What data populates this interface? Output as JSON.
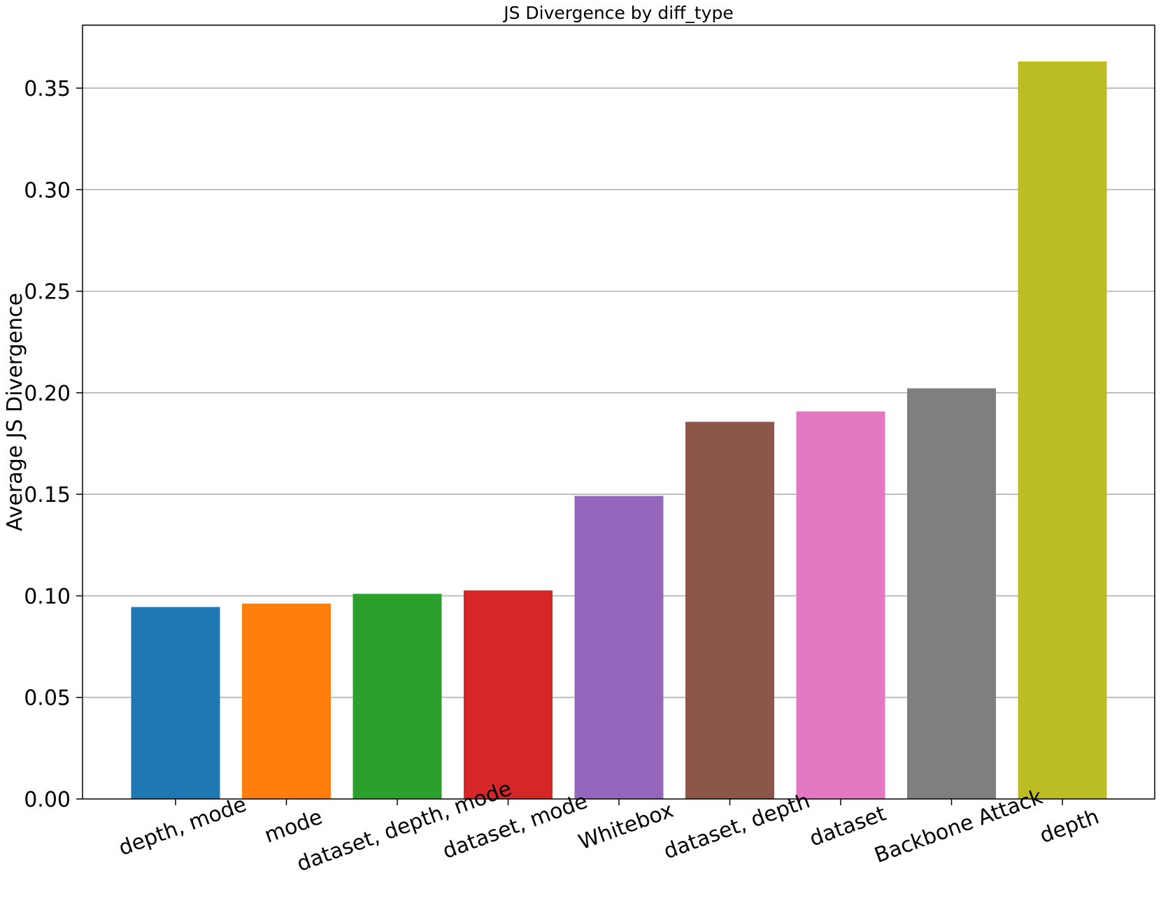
{
  "chart_data": {
    "type": "bar",
    "title": "JS Divergence by diff_type",
    "xlabel": "",
    "ylabel": "Average JS Divergence",
    "categories": [
      "depth, mode",
      "mode",
      "dataset, depth, mode",
      "dataset, mode",
      "Whitebox",
      "dataset, depth",
      "dataset",
      "Backbone Attack",
      "depth"
    ],
    "values": [
      0.0945,
      0.0962,
      0.101,
      0.1027,
      0.1492,
      0.1857,
      0.1908,
      0.2022,
      0.3631
    ],
    "colors": [
      "#1f77b4",
      "#ff7f0e",
      "#2ca02c",
      "#d62728",
      "#9467bd",
      "#8c564b",
      "#e377c2",
      "#7f7f7f",
      "#bcbd22"
    ],
    "ylim": [
      0,
      0.381
    ],
    "yticks": [
      "0.00",
      "0.05",
      "0.10",
      "0.15",
      "0.20",
      "0.25",
      "0.30",
      "0.35"
    ],
    "grid": "horizontal",
    "legend": "none",
    "xtick_rotation_deg": -20
  }
}
